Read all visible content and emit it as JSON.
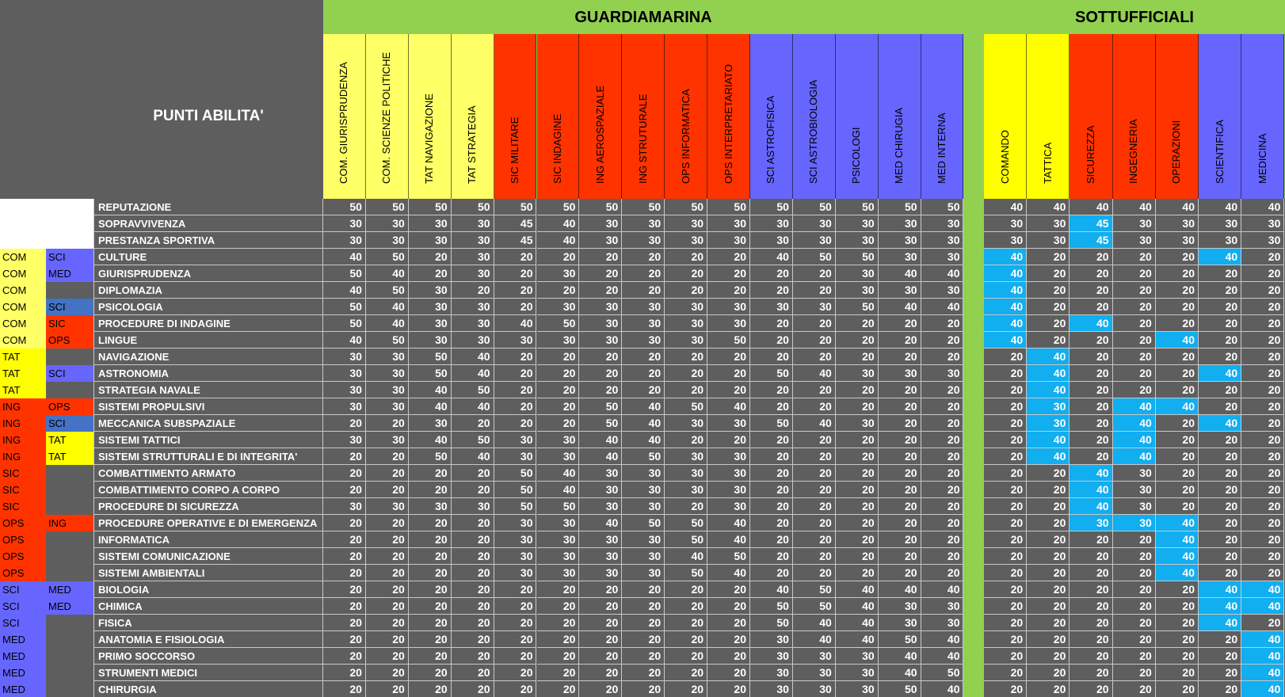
{
  "header": {
    "corner_label": "PUNTI ABILITA'",
    "group1_title": "GUARDIAMARINA",
    "group2_title": "SOTTUFFICIALI"
  },
  "colors": {
    "COM": "#ffff66",
    "TAT": "#ffff00",
    "ING": "#ff3300",
    "SIC": "#ff3300",
    "OPS": "#ff3300",
    "SCI": "#6666ff",
    "MED": "#6666ff",
    "highlight": "#11aef0",
    "band": "#92d050"
  },
  "columns": [
    {
      "label": "COM. GIURISPRUDENZA",
      "group": "COM"
    },
    {
      "label": "COM. SCIENZE POLITICHE",
      "group": "COM"
    },
    {
      "label": "TAT NAVIGAZIONE",
      "group": "COM"
    },
    {
      "label": "TAT STRATEGIA",
      "group": "COM"
    },
    {
      "label": "SIC MILITARE",
      "group": "SIC"
    },
    {
      "label": "SIC INDAGINE",
      "group": "SIC"
    },
    {
      "label": "ING AEROSPAZIALE",
      "group": "SIC"
    },
    {
      "label": "ING STRUTURALE",
      "group": "SIC"
    },
    {
      "label": "OPS INFORMATICA",
      "group": "SIC"
    },
    {
      "label": "OPS INTERPRETARIATO",
      "group": "SIC"
    },
    {
      "label": "SCI ASTROFISICA",
      "group": "SCI"
    },
    {
      "label": "SCI ASTROBIOLOGIA",
      "group": "SCI"
    },
    {
      "label": "PSICOLOGI",
      "group": "SCI"
    },
    {
      "label": "MED CHIRUGIA",
      "group": "SCI"
    },
    {
      "label": "MED INTERNA",
      "group": "SCI"
    },
    {
      "label": "COMANDO",
      "group": "TAT"
    },
    {
      "label": "TATTICA",
      "group": "TAT"
    },
    {
      "label": "SICUREZZA",
      "group": "SIC"
    },
    {
      "label": "INGEGNERIA",
      "group": "SIC"
    },
    {
      "label": "OPERAZIONI",
      "group": "SIC"
    },
    {
      "label": "SCIENTIFICA",
      "group": "SCI"
    },
    {
      "label": "MEDICINA",
      "group": "SCI"
    }
  ],
  "rows": [
    {
      "tag1": "",
      "tag2": "",
      "name": "REPUTAZIONE",
      "values": [
        50,
        50,
        50,
        50,
        50,
        50,
        50,
        50,
        50,
        50,
        50,
        50,
        50,
        50,
        50,
        40,
        40,
        40,
        40,
        40,
        40,
        40
      ],
      "highlight": []
    },
    {
      "tag1": "",
      "tag2": "",
      "name": "SOPRAVVIVENZA",
      "values": [
        30,
        30,
        30,
        30,
        45,
        40,
        30,
        30,
        30,
        30,
        30,
        30,
        30,
        30,
        30,
        30,
        30,
        45,
        30,
        30,
        30,
        30
      ],
      "highlight": [
        17
      ]
    },
    {
      "tag1": "",
      "tag2": "",
      "name": "PRESTANZA SPORTIVA",
      "values": [
        30,
        30,
        30,
        30,
        45,
        40,
        30,
        30,
        30,
        30,
        30,
        30,
        30,
        30,
        30,
        30,
        30,
        45,
        30,
        30,
        30,
        30
      ],
      "highlight": [
        17
      ]
    },
    {
      "tag1": "COM",
      "tag2": "SCI",
      "name": "CULTURE",
      "values": [
        40,
        50,
        20,
        30,
        20,
        20,
        20,
        20,
        20,
        20,
        40,
        50,
        50,
        30,
        30,
        40,
        20,
        20,
        20,
        20,
        40,
        20
      ],
      "highlight": [
        15,
        20
      ]
    },
    {
      "tag1": "COM",
      "tag2": "MED",
      "name": "GIURISPRUDENZA",
      "values": [
        50,
        40,
        20,
        30,
        20,
        30,
        20,
        20,
        20,
        20,
        20,
        20,
        30,
        40,
        40,
        40,
        20,
        20,
        20,
        20,
        20,
        20
      ],
      "highlight": [
        15
      ]
    },
    {
      "tag1": "COM",
      "tag2": "",
      "name": "DIPLOMAZIA",
      "values": [
        40,
        50,
        30,
        20,
        20,
        20,
        20,
        20,
        20,
        20,
        20,
        20,
        30,
        30,
        30,
        40,
        20,
        20,
        20,
        20,
        20,
        20
      ],
      "highlight": [
        15
      ]
    },
    {
      "tag1": "COM",
      "tag2": "SCI",
      "name": "PSICOLOGIA",
      "values": [
        50,
        40,
        30,
        30,
        20,
        30,
        30,
        30,
        30,
        30,
        30,
        30,
        50,
        40,
        40,
        40,
        20,
        20,
        20,
        20,
        20,
        20
      ],
      "highlight": [
        15
      ]
    },
    {
      "tag1": "COM",
      "tag2": "SIC",
      "name": "PROCEDURE DI INDAGINE",
      "values": [
        50,
        40,
        30,
        30,
        40,
        50,
        30,
        30,
        30,
        30,
        20,
        20,
        20,
        20,
        20,
        40,
        20,
        40,
        20,
        20,
        20,
        20
      ],
      "highlight": [
        15,
        17
      ]
    },
    {
      "tag1": "COM",
      "tag2": "OPS",
      "name": "LINGUE",
      "values": [
        40,
        50,
        30,
        30,
        30,
        30,
        30,
        30,
        30,
        50,
        20,
        20,
        20,
        20,
        20,
        40,
        20,
        20,
        20,
        40,
        20,
        20
      ],
      "highlight": [
        15,
        19
      ]
    },
    {
      "tag1": "TAT",
      "tag2": "",
      "name": "NAVIGAZIONE",
      "values": [
        30,
        30,
        50,
        40,
        20,
        20,
        20,
        20,
        20,
        20,
        20,
        20,
        20,
        20,
        20,
        20,
        40,
        20,
        20,
        20,
        20,
        20
      ],
      "highlight": [
        16
      ]
    },
    {
      "tag1": "TAT",
      "tag2": "SCI",
      "name": "ASTRONOMIA",
      "values": [
        30,
        30,
        50,
        40,
        20,
        20,
        20,
        20,
        20,
        20,
        50,
        40,
        30,
        30,
        30,
        20,
        40,
        20,
        20,
        20,
        40,
        20
      ],
      "highlight": [
        16,
        20
      ]
    },
    {
      "tag1": "TAT",
      "tag2": "",
      "name": "STRATEGIA NAVALE",
      "values": [
        30,
        30,
        40,
        50,
        20,
        20,
        20,
        20,
        20,
        20,
        20,
        20,
        20,
        20,
        20,
        20,
        40,
        20,
        20,
        20,
        20,
        20
      ],
      "highlight": [
        16
      ]
    },
    {
      "tag1": "ING",
      "tag2": "OPS",
      "name": "SISTEMI PROPULSIVI",
      "values": [
        30,
        30,
        40,
        40,
        20,
        20,
        50,
        40,
        50,
        40,
        20,
        20,
        20,
        20,
        20,
        20,
        30,
        20,
        40,
        40,
        20,
        20
      ],
      "highlight": [
        16,
        18,
        19
      ]
    },
    {
      "tag1": "ING",
      "tag2": "SCI",
      "name": "MECCANICA SUBSPAZIALE",
      "values": [
        20,
        20,
        30,
        20,
        20,
        20,
        50,
        40,
        30,
        30,
        50,
        40,
        30,
        20,
        20,
        20,
        30,
        20,
        40,
        20,
        40,
        20
      ],
      "highlight": [
        16,
        18,
        20
      ]
    },
    {
      "tag1": "ING",
      "tag2": "TAT",
      "name": "SISTEMI TATTICI",
      "values": [
        30,
        30,
        40,
        50,
        30,
        30,
        40,
        40,
        20,
        20,
        20,
        20,
        20,
        20,
        20,
        20,
        40,
        20,
        40,
        20,
        20,
        20
      ],
      "highlight": [
        16,
        18
      ]
    },
    {
      "tag1": "ING",
      "tag2": "TAT",
      "name": "SISTEMI STRUTTURALI E DI INTEGRITA'",
      "values": [
        20,
        20,
        50,
        40,
        30,
        30,
        40,
        50,
        30,
        30,
        20,
        20,
        20,
        20,
        20,
        20,
        40,
        20,
        40,
        20,
        20,
        20
      ],
      "highlight": [
        16,
        18
      ]
    },
    {
      "tag1": "SIC",
      "tag2": "",
      "name": "COMBATTIMENTO ARMATO",
      "values": [
        20,
        20,
        20,
        20,
        50,
        40,
        30,
        30,
        30,
        30,
        20,
        20,
        20,
        20,
        20,
        20,
        20,
        40,
        30,
        20,
        20,
        20
      ],
      "highlight": [
        17
      ]
    },
    {
      "tag1": "SIC",
      "tag2": "",
      "name": "COMBATTIMENTO CORPO A CORPO",
      "values": [
        20,
        20,
        20,
        20,
        50,
        40,
        30,
        30,
        30,
        30,
        20,
        20,
        20,
        20,
        20,
        20,
        20,
        40,
        30,
        20,
        20,
        20
      ],
      "highlight": [
        17
      ]
    },
    {
      "tag1": "SIC",
      "tag2": "",
      "name": "PROCEDURE DI SICUREZZA",
      "values": [
        30,
        30,
        30,
        30,
        50,
        50,
        30,
        30,
        20,
        30,
        20,
        20,
        20,
        20,
        20,
        20,
        20,
        40,
        30,
        20,
        20,
        20
      ],
      "highlight": [
        17
      ]
    },
    {
      "tag1": "OPS",
      "tag2": "ING",
      "name": "PROCEDURE OPERATIVE E DI EMERGENZA",
      "values": [
        20,
        20,
        20,
        20,
        30,
        30,
        40,
        50,
        50,
        40,
        20,
        20,
        20,
        20,
        20,
        20,
        20,
        30,
        30,
        40,
        20,
        20
      ],
      "highlight": [
        17,
        18,
        19
      ]
    },
    {
      "tag1": "OPS",
      "tag2": "",
      "name": "INFORMATICA",
      "values": [
        20,
        20,
        20,
        20,
        30,
        30,
        30,
        30,
        50,
        40,
        20,
        20,
        20,
        20,
        20,
        20,
        20,
        20,
        20,
        40,
        20,
        20
      ],
      "highlight": [
        19
      ]
    },
    {
      "tag1": "OPS",
      "tag2": "",
      "name": "SISTEMI COMUNICAZIONE",
      "values": [
        20,
        20,
        20,
        20,
        30,
        30,
        30,
        30,
        40,
        50,
        20,
        20,
        20,
        20,
        20,
        20,
        20,
        20,
        20,
        40,
        20,
        20
      ],
      "highlight": [
        19
      ]
    },
    {
      "tag1": "OPS",
      "tag2": "",
      "name": "SISTEMI AMBIENTALI",
      "values": [
        20,
        20,
        20,
        20,
        30,
        30,
        30,
        30,
        50,
        40,
        20,
        20,
        20,
        20,
        20,
        20,
        20,
        20,
        20,
        40,
        20,
        20
      ],
      "highlight": [
        19
      ]
    },
    {
      "tag1": "SCI",
      "tag2": "MED",
      "name": "BIOLOGIA",
      "values": [
        20,
        20,
        20,
        20,
        20,
        20,
        20,
        20,
        20,
        20,
        40,
        50,
        40,
        40,
        40,
        20,
        20,
        20,
        20,
        20,
        40,
        40
      ],
      "highlight": [
        20,
        21
      ]
    },
    {
      "tag1": "SCI",
      "tag2": "MED",
      "name": "CHIMICA",
      "values": [
        20,
        20,
        20,
        20,
        20,
        20,
        20,
        20,
        20,
        20,
        50,
        50,
        40,
        30,
        30,
        20,
        20,
        20,
        20,
        20,
        40,
        40
      ],
      "highlight": [
        20,
        21
      ]
    },
    {
      "tag1": "SCI",
      "tag2": "",
      "name": "FISICA",
      "values": [
        20,
        20,
        20,
        20,
        20,
        20,
        20,
        20,
        20,
        20,
        50,
        40,
        40,
        30,
        30,
        20,
        20,
        20,
        20,
        20,
        40,
        20
      ],
      "highlight": [
        20
      ]
    },
    {
      "tag1": "MED",
      "tag2": "",
      "name": "ANATOMIA E FISIOLOGIA",
      "values": [
        20,
        20,
        20,
        20,
        20,
        20,
        20,
        20,
        20,
        20,
        30,
        40,
        40,
        50,
        40,
        20,
        20,
        20,
        20,
        20,
        20,
        40
      ],
      "highlight": [
        21
      ]
    },
    {
      "tag1": "MED",
      "tag2": "",
      "name": "PRIMO SOCCORSO",
      "values": [
        20,
        20,
        20,
        20,
        20,
        20,
        20,
        20,
        20,
        20,
        30,
        30,
        30,
        40,
        40,
        20,
        20,
        20,
        20,
        20,
        20,
        40
      ],
      "highlight": [
        21
      ]
    },
    {
      "tag1": "MED",
      "tag2": "",
      "name": "STRUMENTI MEDICI",
      "values": [
        20,
        20,
        20,
        20,
        20,
        20,
        20,
        20,
        20,
        20,
        30,
        30,
        30,
        40,
        50,
        20,
        20,
        20,
        20,
        20,
        20,
        40
      ],
      "highlight": [
        21
      ]
    },
    {
      "tag1": "MED",
      "tag2": "",
      "name": "CHIRURGIA",
      "values": [
        20,
        20,
        20,
        20,
        20,
        20,
        20,
        20,
        20,
        20,
        30,
        30,
        30,
        50,
        40,
        20,
        20,
        20,
        20,
        20,
        20,
        40
      ],
      "highlight": [
        21
      ]
    }
  ]
}
